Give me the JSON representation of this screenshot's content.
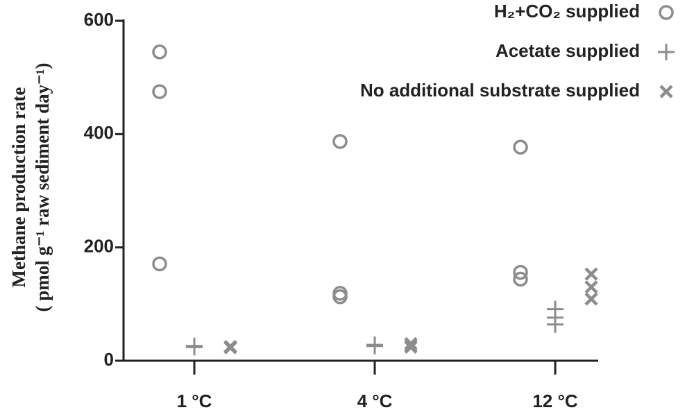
{
  "chart_data": {
    "type": "scatter",
    "y_label": [
      "Methane production rate",
      "( pmol g⁻¹ raw sediment day⁻¹)"
    ],
    "categories": [
      "1 °C",
      "4 °C",
      "12 °C"
    ],
    "ylim": [
      0,
      600
    ],
    "yticks": [
      0,
      200,
      400,
      600
    ],
    "grid": false,
    "legend": "top-right",
    "series": [
      {
        "name": "H₂+CO₂ supplied",
        "color": "#8c8c8c",
        "marker": "circle",
        "values": [
          [
            545,
            475,
            171
          ],
          [
            387,
            119,
            113
          ],
          [
            377,
            156,
            144
          ]
        ]
      },
      {
        "name": "Acetate supplied",
        "color": "#8c8c8c",
        "marker": "plus",
        "values": [
          [
            26,
            25,
            24
          ],
          [
            28,
            27,
            26
          ],
          [
            91,
            76,
            64
          ]
        ]
      },
      {
        "name": "No additional substrate supplied",
        "color": "#8c8c8c",
        "marker": "x",
        "values": [
          [
            25,
            24,
            23
          ],
          [
            30,
            27,
            24
          ],
          [
            153,
            130,
            109
          ]
        ]
      }
    ]
  }
}
